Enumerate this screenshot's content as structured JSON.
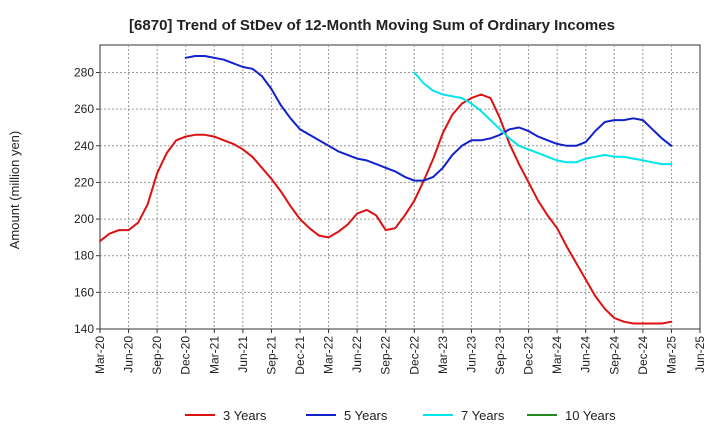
{
  "chart_data": {
    "type": "line",
    "title": "[6870]  Trend of StDev of 12-Month Moving Sum of Ordinary Incomes",
    "xlabel": "",
    "ylabel": "Amount (million yen)",
    "ylim": [
      140,
      295
    ],
    "y_ticks": [
      "140",
      "160",
      "180",
      "200",
      "220",
      "240",
      "260",
      "280"
    ],
    "y_tick_values": [
      140,
      160,
      180,
      200,
      220,
      240,
      260,
      280
    ],
    "x_ticks": [
      "Mar-20",
      "Jun-20",
      "Sep-20",
      "Dec-20",
      "Mar-21",
      "Jun-21",
      "Sep-21",
      "Dec-21",
      "Mar-22",
      "Jun-22",
      "Sep-22",
      "Dec-22",
      "Mar-23",
      "Jun-23",
      "Sep-23",
      "Dec-23",
      "Mar-24",
      "Jun-24",
      "Sep-24",
      "Dec-24",
      "Mar-25",
      "Jun-25"
    ],
    "x_range_months": [
      0,
      63
    ],
    "grid": true,
    "legend_position": "bottom",
    "series": [
      {
        "name": "3 Years",
        "color": "#dd1111",
        "start_month": 0,
        "values": [
          188,
          192,
          194,
          194,
          198,
          208,
          225,
          236,
          243,
          245,
          246,
          246,
          245,
          243,
          241,
          238,
          234,
          228,
          222,
          215,
          207,
          200,
          195,
          191,
          190,
          193,
          197,
          203,
          205,
          202,
          194,
          195,
          202,
          210,
          221,
          233,
          247,
          257,
          263,
          266,
          268,
          266,
          255,
          241,
          230,
          220,
          210,
          202,
          195,
          185,
          176,
          167,
          158,
          151,
          146,
          144,
          143,
          143,
          143,
          143,
          144
        ]
      },
      {
        "name": "5 Years",
        "color": "#1122cc",
        "start_month": 9,
        "values": [
          288,
          289,
          289,
          288,
          287,
          285,
          283,
          282,
          278,
          271,
          262,
          255,
          249,
          246,
          243,
          240,
          237,
          235,
          233,
          232,
          230,
          228,
          226,
          223,
          221,
          221,
          223,
          228,
          235,
          240,
          243,
          243,
          244,
          246,
          249,
          250,
          248,
          245,
          243,
          241,
          240,
          240,
          242,
          248,
          253,
          254,
          254,
          255,
          254,
          249,
          244,
          240
        ]
      },
      {
        "name": "7 Years",
        "color": "#00e5ee",
        "start_month": 33,
        "values": [
          280,
          274,
          270,
          268,
          267,
          266,
          263,
          259,
          254,
          249,
          244,
          240,
          238,
          236,
          234,
          232,
          231,
          231,
          233,
          234,
          235,
          234,
          234,
          233,
          232,
          231,
          230,
          230
        ]
      },
      {
        "name": "10 Years",
        "color": "#228822",
        "start_month": 0,
        "values": []
      }
    ]
  }
}
